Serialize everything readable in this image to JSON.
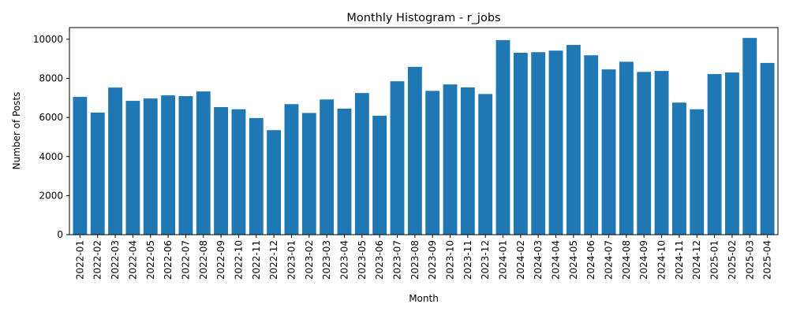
{
  "chart_data": {
    "type": "bar",
    "title": "Monthly Histogram - r_jobs",
    "xlabel": "Month",
    "ylabel": "Number of Posts",
    "categories": [
      "2022-01",
      "2022-02",
      "2022-03",
      "2022-04",
      "2022-05",
      "2022-06",
      "2022-07",
      "2022-08",
      "2022-09",
      "2022-10",
      "2022-11",
      "2022-12",
      "2023-01",
      "2023-02",
      "2023-03",
      "2023-04",
      "2023-05",
      "2023-06",
      "2023-07",
      "2023-08",
      "2023-09",
      "2023-10",
      "2023-11",
      "2023-12",
      "2024-01",
      "2024-02",
      "2024-03",
      "2024-04",
      "2024-05",
      "2024-06",
      "2024-07",
      "2024-08",
      "2024-09",
      "2024-10",
      "2024-11",
      "2024-12",
      "2025-01",
      "2025-02",
      "2025-03",
      "2025-04"
    ],
    "values": [
      7050,
      6250,
      7530,
      6850,
      6970,
      7130,
      7090,
      7330,
      6530,
      6420,
      5970,
      5350,
      6680,
      6230,
      6920,
      6450,
      7250,
      6090,
      7850,
      8590,
      7360,
      7690,
      7540,
      7200,
      9960,
      9310,
      9340,
      9420,
      9710,
      9180,
      8460,
      8850,
      8330,
      8380,
      6760,
      6420,
      8220,
      8300,
      10070,
      8790
    ],
    "ylim": [
      0,
      10600
    ],
    "yticks": [
      0,
      2000,
      4000,
      6000,
      8000,
      10000
    ],
    "grid": false,
    "legend": "none",
    "bar_color": "#1f77b4"
  }
}
